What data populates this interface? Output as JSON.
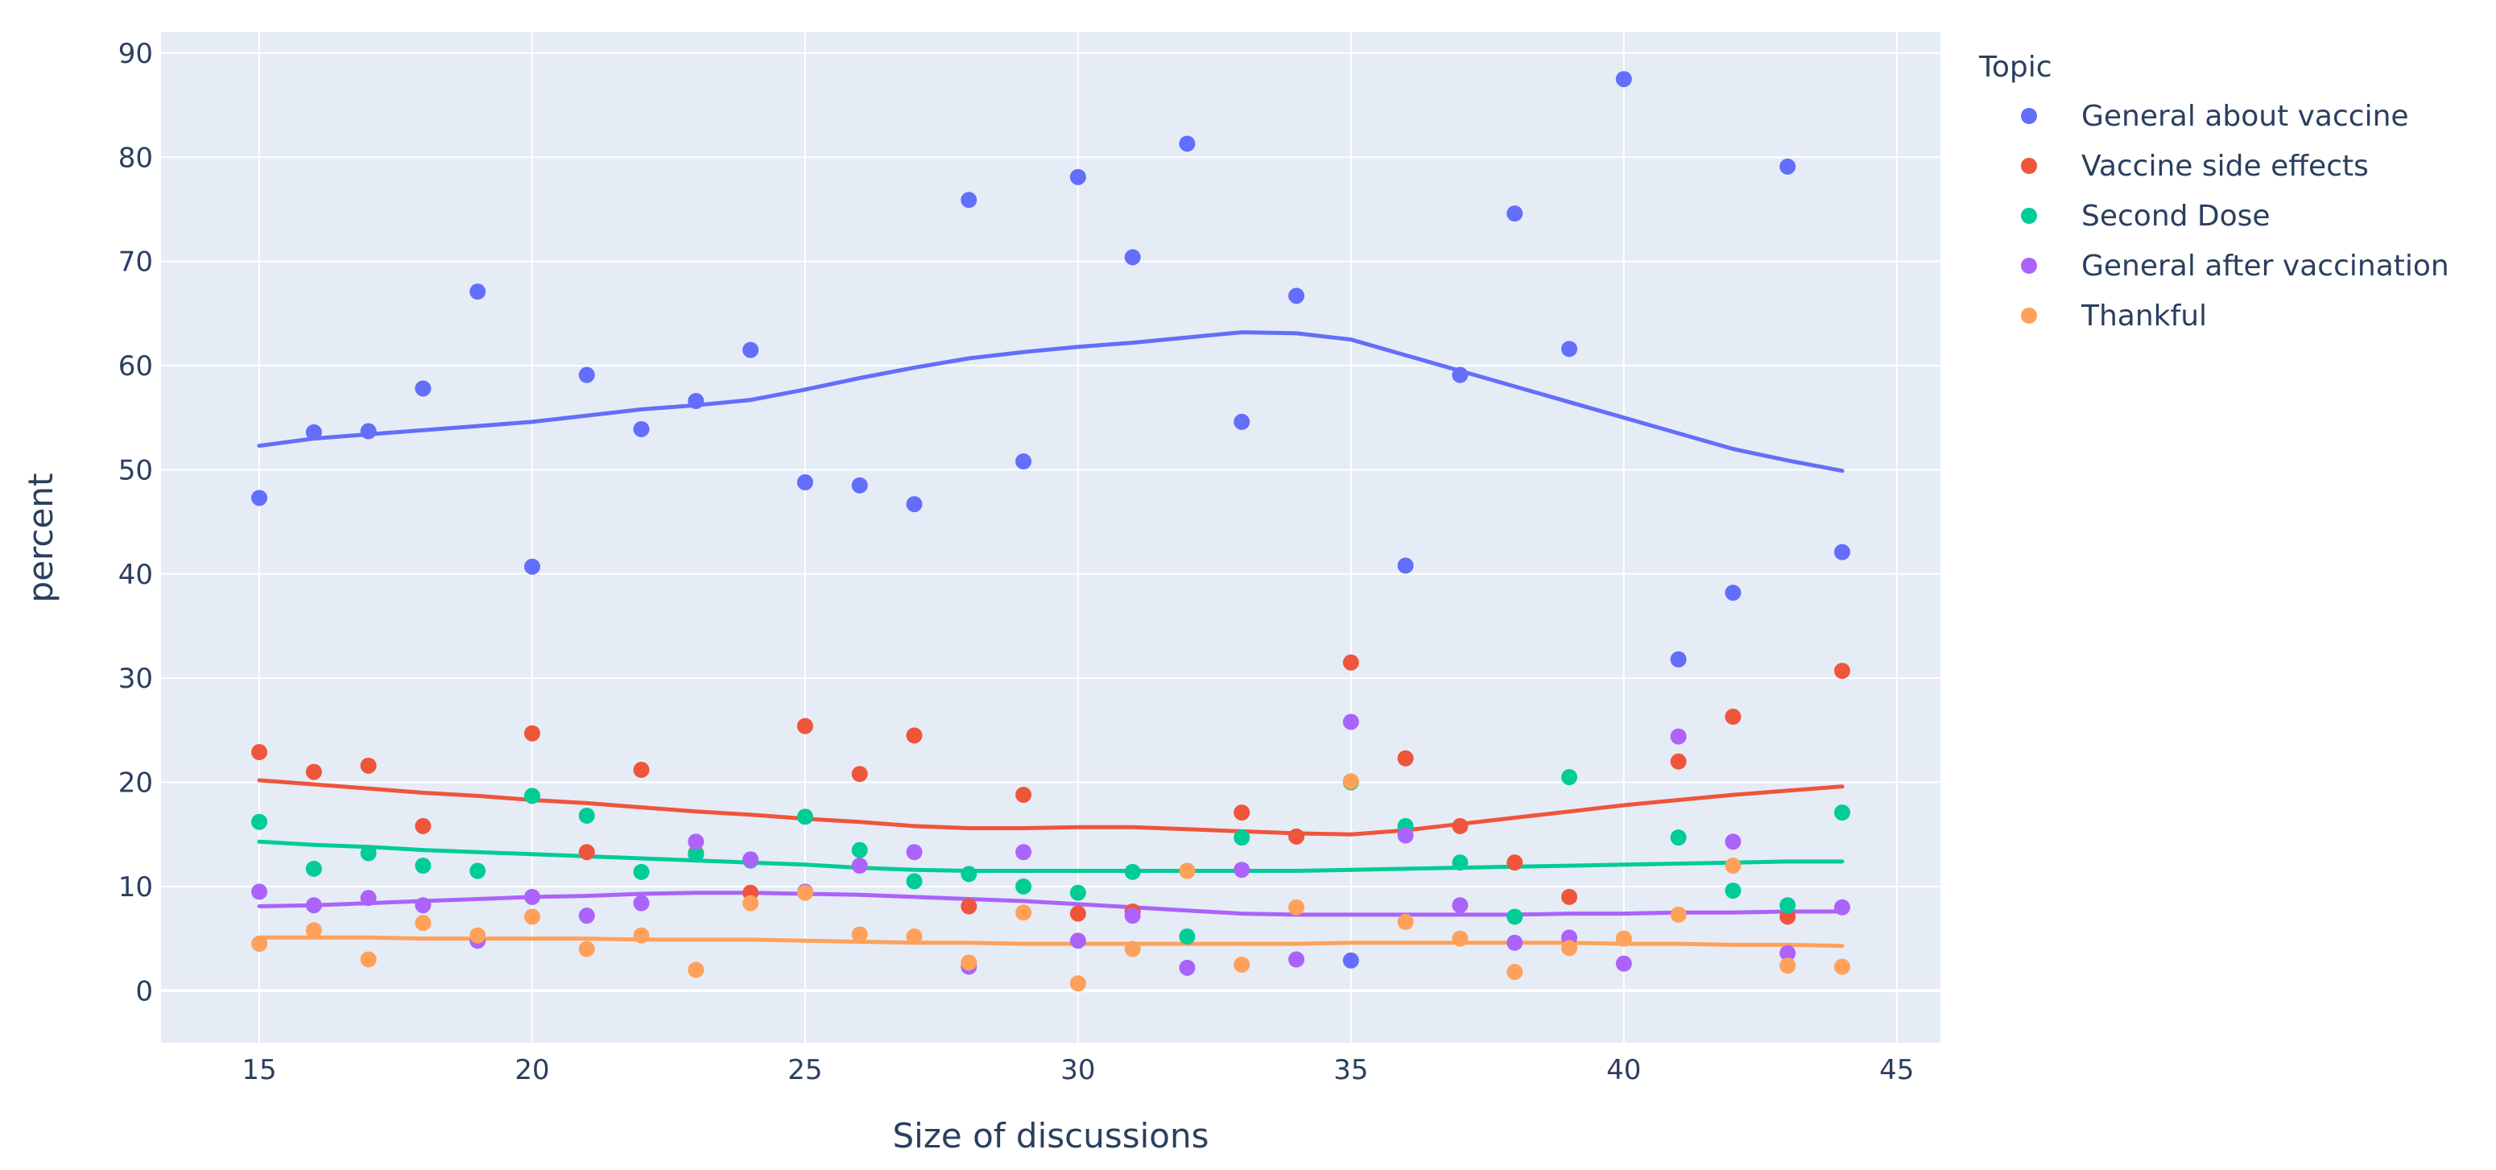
{
  "chart_data": {
    "type": "scatter",
    "title": "",
    "xlabel": "Size of discussions",
    "ylabel": "percent",
    "xlim": [
      13.2,
      45.8
    ],
    "ylim": [
      -5,
      92
    ],
    "x_ticks": [
      15,
      20,
      25,
      30,
      35,
      40,
      45
    ],
    "y_ticks": [
      0,
      10,
      20,
      30,
      40,
      50,
      60,
      70,
      80,
      90
    ],
    "grid": true,
    "background": "#e5ecf6",
    "legend": {
      "title": "Topic",
      "placement": "right"
    },
    "trendline": "lowess",
    "x": [
      15,
      16,
      17,
      18,
      19,
      20,
      21,
      22,
      23,
      24,
      25,
      26,
      27,
      28,
      29,
      30,
      31,
      32,
      33,
      34,
      35,
      36,
      37,
      38,
      39,
      40,
      41,
      42,
      43,
      44
    ],
    "series": [
      {
        "name": "General about vaccine",
        "color": "#636efa",
        "values": [
          47.3,
          53.6,
          53.7,
          57.8,
          67.1,
          40.7,
          59.1,
          53.9,
          56.6,
          61.5,
          48.8,
          48.5,
          46.7,
          75.9,
          50.8,
          78.1,
          70.4,
          81.3,
          54.6,
          66.7,
          2.9,
          40.8,
          59.1,
          74.6,
          61.6,
          87.5,
          31.8,
          38.2,
          79.1,
          42.1
        ],
        "trend": [
          52.3,
          53.0,
          53.4,
          53.8,
          54.2,
          54.6,
          55.2,
          55.8,
          56.2,
          56.7,
          57.7,
          58.8,
          59.8,
          60.7,
          61.3,
          61.8,
          62.2,
          62.7,
          63.2,
          63.1,
          62.5,
          61.0,
          59.5,
          58.0,
          56.5,
          55.0,
          53.5,
          52.0,
          50.9,
          49.9
        ]
      },
      {
        "name": "Vaccine side effects",
        "color": "#ef553b",
        "values": [
          22.9,
          21.0,
          21.6,
          15.8,
          null,
          24.7,
          13.3,
          21.2,
          13.2,
          9.4,
          25.4,
          20.8,
          24.5,
          8.1,
          18.8,
          7.4,
          7.6,
          11.5,
          17.1,
          14.8,
          31.5,
          22.3,
          15.8,
          12.3,
          9.0,
          null,
          22.0,
          26.3,
          7.1,
          30.7
        ],
        "trend": [
          20.2,
          19.8,
          19.4,
          19.0,
          18.7,
          18.3,
          18.0,
          17.6,
          17.2,
          16.9,
          16.5,
          16.2,
          15.8,
          15.6,
          15.6,
          15.7,
          15.7,
          15.5,
          15.3,
          15.1,
          15.0,
          15.4,
          16.0,
          16.6,
          17.2,
          17.8,
          18.3,
          18.8,
          19.2,
          19.6
        ]
      },
      {
        "name": "Second Dose",
        "color": "#00cc96",
        "values": [
          16.2,
          11.7,
          13.2,
          12.0,
          11.5,
          18.7,
          16.8,
          11.4,
          13.1,
          12.5,
          16.7,
          13.5,
          10.5,
          11.2,
          10.0,
          9.4,
          11.4,
          5.2,
          14.7,
          null,
          20.0,
          15.8,
          12.3,
          7.1,
          20.5,
          null,
          14.7,
          9.6,
          8.2,
          17.1
        ],
        "trend": [
          14.3,
          14.0,
          13.8,
          13.5,
          13.3,
          13.1,
          12.9,
          12.7,
          12.5,
          12.3,
          12.1,
          11.8,
          11.6,
          11.5,
          11.5,
          11.5,
          11.5,
          11.5,
          11.5,
          11.5,
          11.6,
          11.7,
          11.8,
          11.9,
          12.0,
          12.1,
          12.2,
          12.3,
          12.4,
          12.4
        ]
      },
      {
        "name": "General after vaccination",
        "color": "#ab63fa",
        "values": [
          9.5,
          8.2,
          8.9,
          8.2,
          4.8,
          9.0,
          7.2,
          8.4,
          14.3,
          12.6,
          9.5,
          12.0,
          13.3,
          2.3,
          13.3,
          4.8,
          7.2,
          2.2,
          11.6,
          3.0,
          25.8,
          14.9,
          8.2,
          4.6,
          5.1,
          2.6,
          24.4,
          14.3,
          3.6,
          8.0
        ],
        "trend": [
          8.1,
          8.2,
          8.4,
          8.6,
          8.8,
          9.0,
          9.1,
          9.3,
          9.4,
          9.4,
          9.3,
          9.2,
          9.0,
          8.8,
          8.6,
          8.3,
          8.0,
          7.7,
          7.4,
          7.3,
          7.3,
          7.3,
          7.3,
          7.3,
          7.4,
          7.4,
          7.5,
          7.5,
          7.6,
          7.6
        ]
      },
      {
        "name": "Thankful",
        "color": "#ffa15a",
        "values": [
          4.5,
          5.8,
          3.0,
          6.5,
          5.3,
          7.1,
          4.0,
          5.3,
          2.0,
          8.4,
          9.4,
          5.4,
          5.2,
          2.7,
          7.5,
          0.7,
          4.0,
          11.5,
          2.5,
          8.0,
          20.1,
          6.6,
          5.0,
          1.8,
          4.1,
          5.0,
          7.3,
          12.0,
          2.4,
          2.3
        ],
        "trend": [
          5.1,
          5.1,
          5.1,
          5.0,
          5.0,
          5.0,
          5.0,
          4.9,
          4.9,
          4.9,
          4.8,
          4.7,
          4.6,
          4.6,
          4.5,
          4.5,
          4.5,
          4.5,
          4.5,
          4.5,
          4.6,
          4.6,
          4.6,
          4.6,
          4.6,
          4.5,
          4.5,
          4.4,
          4.4,
          4.3
        ]
      }
    ]
  }
}
